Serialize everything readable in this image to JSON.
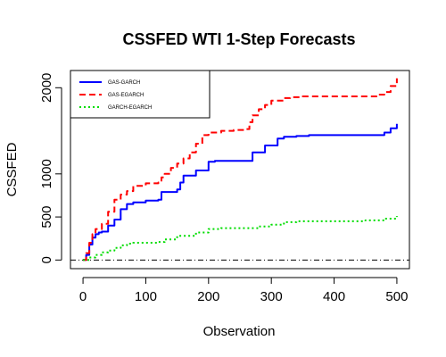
{
  "chart_data": {
    "type": "line",
    "title": "CSSFED WTI 1-Step Forecasts",
    "xlabel": "Observation",
    "ylabel": "CSSFED",
    "xlim": [
      -20,
      520
    ],
    "ylim": [
      -100,
      2200
    ],
    "x_ticks": [
      0,
      100,
      200,
      300,
      400,
      500
    ],
    "y_ticks": [
      0,
      500,
      1000,
      2000
    ],
    "grid": false,
    "legend_position": "top-left",
    "reference_line": {
      "y": 0,
      "style": "dash-dot",
      "color": "#000000"
    },
    "series": [
      {
        "name": "GAS-GARCH",
        "color": "#0000ff",
        "dash": "solid",
        "x": [
          0,
          5,
          10,
          15,
          20,
          25,
          30,
          40,
          50,
          60,
          70,
          80,
          100,
          120,
          125,
          150,
          155,
          160,
          180,
          200,
          210,
          260,
          270,
          290,
          310,
          320,
          340,
          360,
          400,
          450,
          470,
          480,
          490,
          500
        ],
        "values": [
          0,
          60,
          180,
          260,
          300,
          320,
          330,
          400,
          470,
          590,
          650,
          670,
          690,
          700,
          790,
          820,
          900,
          980,
          1040,
          1140,
          1150,
          1150,
          1250,
          1330,
          1410,
          1430,
          1440,
          1450,
          1450,
          1450,
          1450,
          1480,
          1530,
          1580
        ]
      },
      {
        "name": "GAS-EGARCH",
        "color": "#ff0000",
        "dash": "dashed",
        "x": [
          0,
          5,
          10,
          15,
          20,
          30,
          40,
          50,
          60,
          70,
          80,
          100,
          120,
          125,
          130,
          140,
          150,
          160,
          170,
          180,
          190,
          200,
          220,
          240,
          260,
          265,
          270,
          280,
          290,
          300,
          320,
          330,
          350,
          400,
          450,
          470,
          480,
          490,
          500
        ],
        "values": [
          0,
          80,
          200,
          300,
          360,
          420,
          560,
          700,
          760,
          800,
          860,
          890,
          900,
          960,
          1000,
          1070,
          1120,
          1180,
          1250,
          1350,
          1450,
          1480,
          1500,
          1510,
          1520,
          1600,
          1680,
          1750,
          1800,
          1850,
          1880,
          1890,
          1900,
          1900,
          1900,
          1920,
          1950,
          2020,
          2110
        ]
      },
      {
        "name": "GARCH-EGARCH",
        "color": "#00dd00",
        "dash": "dotted",
        "x": [
          0,
          10,
          20,
          30,
          40,
          50,
          60,
          70,
          80,
          100,
          120,
          130,
          150,
          180,
          200,
          220,
          260,
          280,
          300,
          320,
          340,
          360,
          400,
          450,
          480,
          500
        ],
        "values": [
          0,
          30,
          60,
          90,
          110,
          140,
          170,
          190,
          200,
          200,
          210,
          240,
          280,
          320,
          360,
          370,
          370,
          390,
          410,
          440,
          450,
          450,
          450,
          460,
          480,
          510
        ]
      }
    ]
  }
}
